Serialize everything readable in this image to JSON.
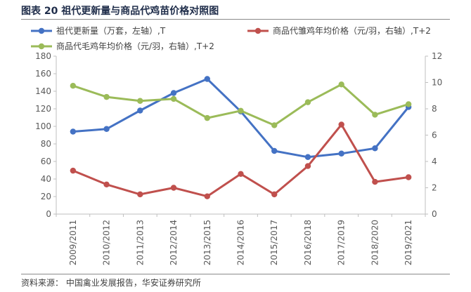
{
  "figure": {
    "title": "图表 20 祖代更新量与商品代鸡苗价格对照图",
    "source": "资料来源： 中国禽业发展报告，华安证券研究所"
  },
  "chart_data": {
    "type": "line",
    "categories": [
      "2009/2011",
      "2010/2012",
      "2011/2013",
      "2012/2014",
      "2013/2015",
      "2014/2016",
      "2015/2017",
      "2016/2018",
      "2017/2019",
      "2018/2020",
      "2019/2021"
    ],
    "left_axis": {
      "min": 0,
      "max": 180,
      "ticks": [
        "0",
        "20",
        "40",
        "60",
        "80",
        "100",
        "120",
        "140",
        "160",
        "180"
      ]
    },
    "right_axis": {
      "min": 0,
      "max": 12,
      "ticks": [
        "0",
        "2",
        "4",
        "6",
        "8",
        "10",
        "12"
      ]
    },
    "grid": false,
    "legend_position": "top",
    "series": [
      {
        "name": "祖代更新量（万套，左轴）,T",
        "axis": "left",
        "color": "#4472c4",
        "values": [
          94,
          97,
          118,
          138,
          154,
          117,
          72,
          65,
          69,
          75,
          122
        ]
      },
      {
        "name": "商品代雏鸡年均价格（元/羽，右轴）,T+2",
        "axis": "right",
        "color": "#c0504d",
        "values": [
          3.3,
          2.25,
          1.5,
          2.0,
          1.35,
          3.05,
          1.5,
          3.65,
          6.8,
          2.45,
          2.8
        ]
      },
      {
        "name": "商品代毛鸡年均价格（元/羽，右轴）,T+2",
        "axis": "right",
        "color": "#9bbb59",
        "values": [
          9.75,
          8.9,
          8.6,
          8.75,
          7.3,
          7.85,
          6.75,
          8.5,
          9.85,
          7.55,
          8.35
        ]
      }
    ]
  }
}
